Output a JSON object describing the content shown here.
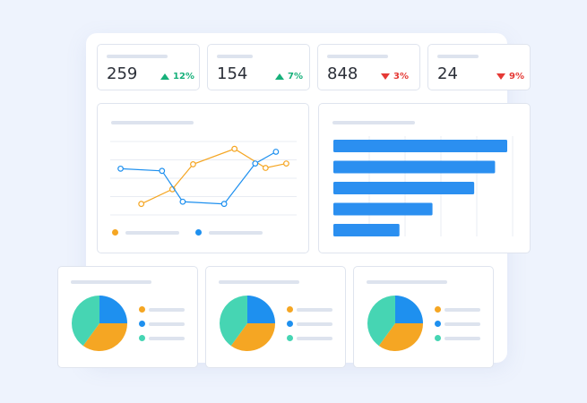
{
  "colors": {
    "orange": "#f5a623",
    "blue": "#1e90ef",
    "teal": "#46d5b3",
    "bar": "#2b8ff0",
    "up": "#16b07a",
    "down": "#e53935"
  },
  "stats": [
    {
      "value": "259",
      "change": "12%",
      "trend": "up"
    },
    {
      "value": "154",
      "change": "7%",
      "trend": "up"
    },
    {
      "value": "848",
      "change": "3%",
      "trend": "down"
    },
    {
      "value": "24",
      "change": "9%",
      "trend": "down"
    }
  ],
  "chart_data": [
    {
      "type": "line",
      "x": [
        1,
        2,
        3,
        4,
        5,
        6,
        7,
        8
      ],
      "ylim": [
        0,
        10
      ],
      "grid": true,
      "series": [
        {
          "color": "#f5a623",
          "points": [
            [
              1.5,
              1.5
            ],
            [
              3,
              3.5
            ],
            [
              4,
              6.9
            ],
            [
              6,
              9.0
            ],
            [
              7.5,
              6.4
            ],
            [
              8.5,
              7.0
            ]
          ]
        },
        {
          "color": "#1e90ef",
          "points": [
            [
              0.5,
              6.3
            ],
            [
              2.5,
              6.0
            ],
            [
              3.5,
              1.8
            ],
            [
              5.5,
              1.5
            ],
            [
              7,
              7.0
            ],
            [
              8,
              8.6
            ]
          ]
        }
      ]
    },
    {
      "type": "bar",
      "orientation": "horizontal",
      "values": [
        100,
        93,
        81,
        57,
        38
      ],
      "xlim": [
        0,
        100
      ],
      "grid": true
    },
    {
      "type": "pie",
      "values": [
        25,
        35,
        40
      ],
      "colors": [
        "#1e90ef",
        "#f5a623",
        "#46d5b3"
      ]
    },
    {
      "type": "pie",
      "values": [
        25,
        35,
        40
      ],
      "colors": [
        "#1e90ef",
        "#f5a623",
        "#46d5b3"
      ]
    },
    {
      "type": "pie",
      "values": [
        25,
        35,
        40
      ],
      "colors": [
        "#1e90ef",
        "#f5a623",
        "#46d5b3"
      ]
    }
  ]
}
